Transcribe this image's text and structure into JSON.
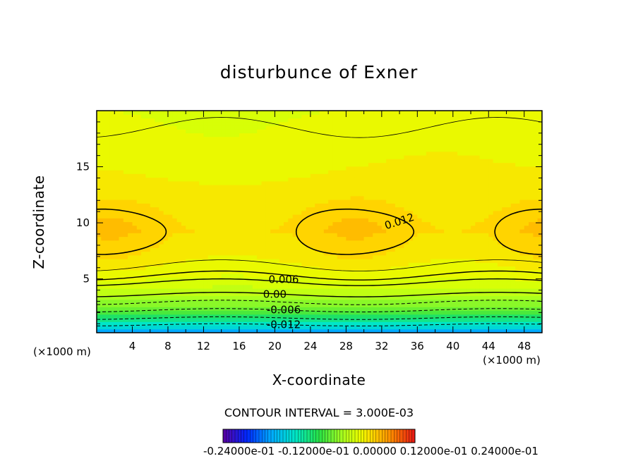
{
  "chart_data": {
    "type": "heatmap",
    "subtype": "filled contour",
    "title": "disturbunce of Exner",
    "xlabel": "X-coordinate",
    "ylabel": "Z-coordinate",
    "x_unit_left": "(×1000 m)",
    "x_unit_right": "(×1000 m)",
    "xlim": [
      0,
      50
    ],
    "ylim": [
      0.2,
      20
    ],
    "x_ticks": [
      4,
      8,
      12,
      16,
      20,
      24,
      28,
      32,
      36,
      40,
      44,
      48
    ],
    "y_ticks": [
      5,
      10,
      15
    ],
    "contour_interval_text": "CONTOUR INTERVAL = 3.000E-03",
    "contour_labels": [
      "0.012",
      "0.006",
      "0.00",
      "-0.006",
      "-0.012"
    ],
    "colorbar_labels_text": "-0.24000e-01 -0.12000e-01 0.00000 0.12000e-01 0.24000e-01",
    "colorbar_range": [
      -0.024,
      0.024
    ],
    "field_summary": {
      "max_value_approx": 0.0135,
      "max_locations_x": [
        1.5,
        29
      ],
      "max_level_z": 8.8,
      "min_value_approx": -0.016,
      "min_level_z": 0.2
    },
    "colors": {
      "cyan": "#22d8f0",
      "green": "#30e060",
      "yellow_green": "#c8ff10",
      "yellow": "#f8f000",
      "orange": "#ffc81e"
    }
  }
}
